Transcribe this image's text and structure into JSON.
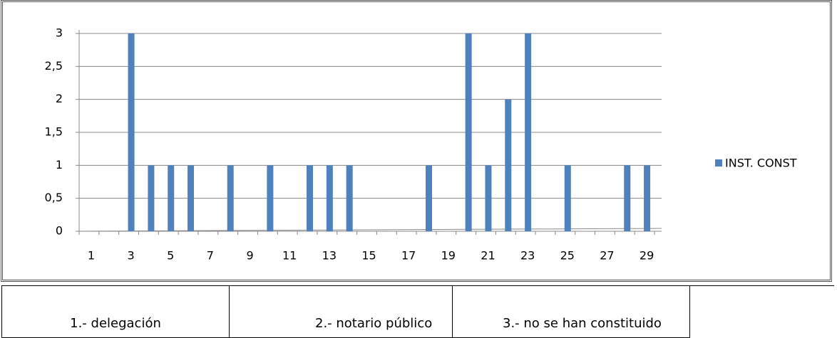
{
  "chart_data": {
    "type": "bar",
    "categories": [
      1,
      null,
      3,
      null,
      5,
      null,
      7,
      null,
      9,
      null,
      11,
      null,
      13,
      null,
      15,
      null,
      17,
      null,
      19,
      null,
      21,
      null,
      23,
      null,
      25,
      null,
      27,
      null,
      29
    ],
    "series": [
      {
        "name": "INST. CONST",
        "color": "#4f81bd",
        "values": [
          0,
          0,
          3,
          1,
          1,
          1,
          0,
          1,
          0,
          1,
          0,
          1,
          1,
          1,
          0,
          0,
          0,
          1,
          0,
          3,
          1,
          2,
          3,
          0,
          1,
          0,
          0,
          1,
          1
        ]
      }
    ],
    "ylim": [
      0,
      3
    ],
    "yticks": [
      0,
      {
        "value": 0.5,
        "label": "0,5"
      },
      1,
      {
        "value": 1.5,
        "label": "1,5"
      },
      2,
      {
        "value": 2.5,
        "label": "2,5"
      },
      3
    ],
    "grid": true,
    "legend": "right"
  },
  "table": {
    "rows": [
      [
        "1.- delegación",
        "2.- notario público",
        "3.- no se han constituido"
      ]
    ]
  }
}
